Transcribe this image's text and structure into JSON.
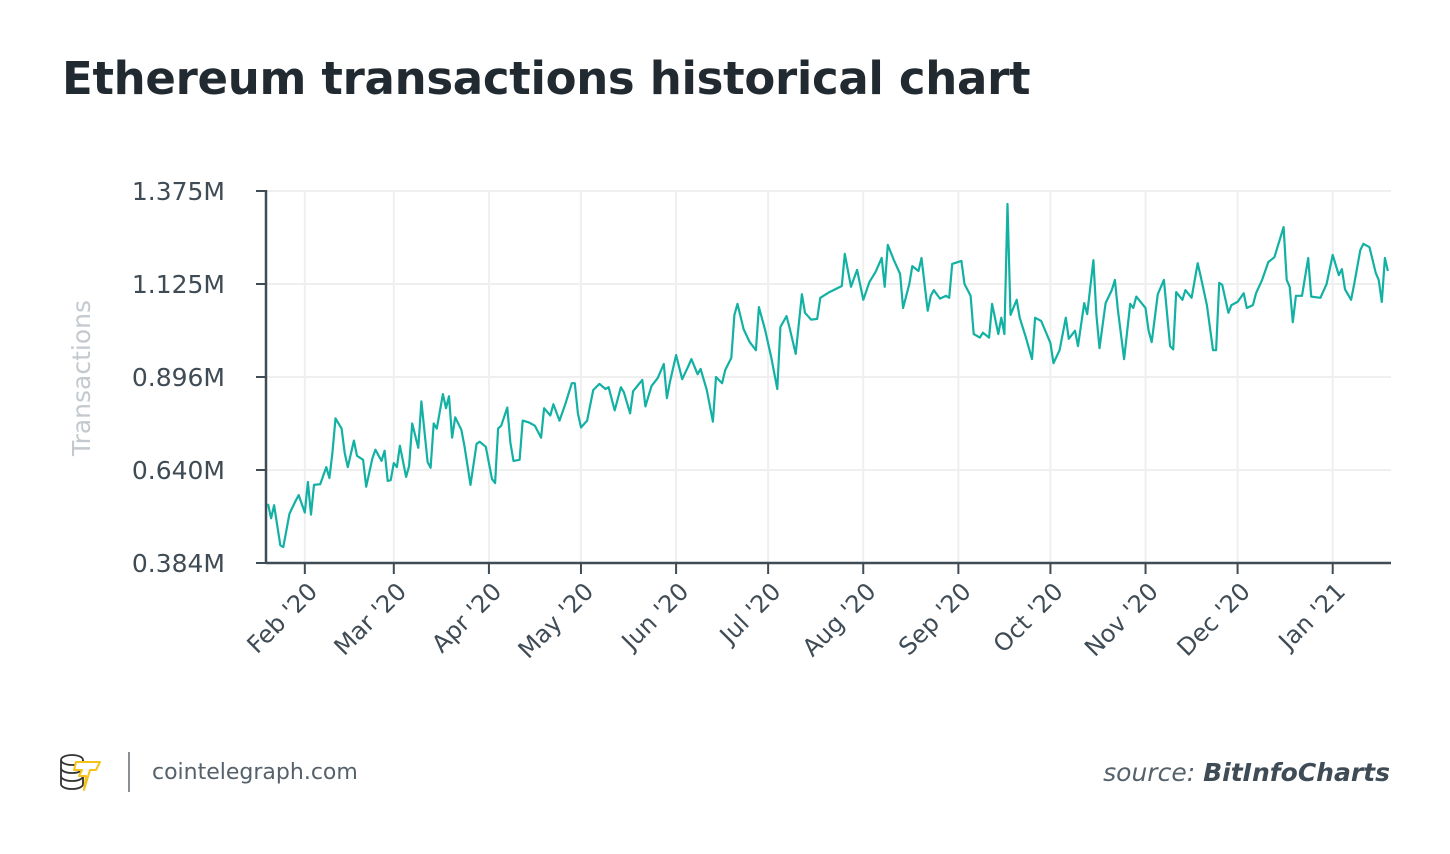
{
  "title": "Ethereum transactions historical chart",
  "footer": {
    "site": "cointelegraph.com",
    "source_prefix": "source:",
    "source_name": "BitInfoCharts",
    "logo": "cointelegraph-logo"
  },
  "colors": {
    "line": "#12b1a3",
    "axis": "#3f4b55",
    "grid": "#efefef",
    "logo_accent": "#f5c21b"
  },
  "chart_data": {
    "type": "line",
    "title": "Ethereum transactions historical chart",
    "ylabel": "Transactions",
    "xlabel": "",
    "yticks": [
      "0.384M",
      "0.640M",
      "0.896M",
      "1.125M",
      "1.375M"
    ],
    "ytick_values": [
      0.384,
      0.64,
      0.896,
      1.125,
      1.375
    ],
    "ylim": [
      0.384,
      1.375
    ],
    "xlim": [
      "2020-01-20",
      "2021-01-20"
    ],
    "xticks": [
      {
        "label": "Feb '20",
        "date": "2020-02-01"
      },
      {
        "label": "Mar '20",
        "date": "2020-03-01"
      },
      {
        "label": "Apr '20",
        "date": "2020-04-01"
      },
      {
        "label": "May '20",
        "date": "2020-05-01"
      },
      {
        "label": "Jun '20",
        "date": "2020-06-01"
      },
      {
        "label": "Jul '20",
        "date": "2020-07-01"
      },
      {
        "label": "Aug '20",
        "date": "2020-08-01"
      },
      {
        "label": "Sep '20",
        "date": "2020-09-01"
      },
      {
        "label": "Oct '20",
        "date": "2020-10-01"
      },
      {
        "label": "Nov '20",
        "date": "2020-11-01"
      },
      {
        "label": "Dec '20",
        "date": "2020-12-01"
      },
      {
        "label": "Jan '21",
        "date": "2021-01-01"
      }
    ],
    "grid": true,
    "unit": "millions",
    "points": [
      [
        "2020-01-20",
        0.547
      ],
      [
        "2020-01-21",
        0.507
      ],
      [
        "2020-01-22",
        0.543
      ],
      [
        "2020-01-24",
        0.433
      ],
      [
        "2020-01-25",
        0.428
      ],
      [
        "2020-01-27",
        0.52
      ],
      [
        "2020-01-29",
        0.555
      ],
      [
        "2020-01-30",
        0.571
      ],
      [
        "2020-02-01",
        0.523
      ],
      [
        "2020-02-02",
        0.607
      ],
      [
        "2020-02-03",
        0.517
      ],
      [
        "2020-02-04",
        0.599
      ],
      [
        "2020-02-06",
        0.601
      ],
      [
        "2020-02-08",
        0.648
      ],
      [
        "2020-02-09",
        0.618
      ],
      [
        "2020-02-10",
        0.687
      ],
      [
        "2020-02-11",
        0.782
      ],
      [
        "2020-02-13",
        0.754
      ],
      [
        "2020-02-14",
        0.687
      ],
      [
        "2020-02-15",
        0.648
      ],
      [
        "2020-02-17",
        0.721
      ],
      [
        "2020-02-18",
        0.679
      ],
      [
        "2020-02-20",
        0.668
      ],
      [
        "2020-02-21",
        0.594
      ],
      [
        "2020-02-23",
        0.671
      ],
      [
        "2020-02-24",
        0.696
      ],
      [
        "2020-02-26",
        0.665
      ],
      [
        "2020-02-27",
        0.693
      ],
      [
        "2020-02-28",
        0.61
      ],
      [
        "2020-02-29",
        0.612
      ],
      [
        "2020-03-01",
        0.659
      ],
      [
        "2020-03-02",
        0.648
      ],
      [
        "2020-03-03",
        0.707
      ],
      [
        "2020-03-05",
        0.621
      ],
      [
        "2020-03-06",
        0.651
      ],
      [
        "2020-03-07",
        0.768
      ],
      [
        "2020-03-09",
        0.701
      ],
      [
        "2020-03-10",
        0.829
      ],
      [
        "2020-03-12",
        0.662
      ],
      [
        "2020-03-13",
        0.646
      ],
      [
        "2020-03-14",
        0.768
      ],
      [
        "2020-03-15",
        0.754
      ],
      [
        "2020-03-17",
        0.849
      ],
      [
        "2020-03-18",
        0.81
      ],
      [
        "2020-03-19",
        0.843
      ],
      [
        "2020-03-20",
        0.729
      ],
      [
        "2020-03-21",
        0.785
      ],
      [
        "2020-03-23",
        0.751
      ],
      [
        "2020-03-24",
        0.707
      ],
      [
        "2020-03-26",
        0.599
      ],
      [
        "2020-03-28",
        0.712
      ],
      [
        "2020-03-29",
        0.718
      ],
      [
        "2020-03-31",
        0.704
      ],
      [
        "2020-04-02",
        0.615
      ],
      [
        "2020-04-03",
        0.604
      ],
      [
        "2020-04-04",
        0.754
      ],
      [
        "2020-04-05",
        0.762
      ],
      [
        "2020-04-07",
        0.812
      ],
      [
        "2020-04-08",
        0.715
      ],
      [
        "2020-04-09",
        0.665
      ],
      [
        "2020-04-11",
        0.668
      ],
      [
        "2020-04-12",
        0.776
      ],
      [
        "2020-04-14",
        0.771
      ],
      [
        "2020-04-16",
        0.762
      ],
      [
        "2020-04-18",
        0.729
      ],
      [
        "2020-04-19",
        0.81
      ],
      [
        "2020-04-21",
        0.79
      ],
      [
        "2020-04-22",
        0.821
      ],
      [
        "2020-04-24",
        0.776
      ],
      [
        "2020-04-26",
        0.824
      ],
      [
        "2020-04-28",
        0.879
      ],
      [
        "2020-04-29",
        0.879
      ],
      [
        "2020-04-30",
        0.796
      ],
      [
        "2020-05-01",
        0.757
      ],
      [
        "2020-05-03",
        0.776
      ],
      [
        "2020-05-05",
        0.86
      ],
      [
        "2020-05-07",
        0.877
      ],
      [
        "2020-05-09",
        0.863
      ],
      [
        "2020-05-10",
        0.868
      ],
      [
        "2020-05-12",
        0.804
      ],
      [
        "2020-05-14",
        0.868
      ],
      [
        "2020-05-15",
        0.854
      ],
      [
        "2020-05-17",
        0.796
      ],
      [
        "2020-05-18",
        0.857
      ],
      [
        "2020-05-21",
        0.888
      ],
      [
        "2020-05-22",
        0.815
      ],
      [
        "2020-05-24",
        0.871
      ],
      [
        "2020-05-26",
        0.893
      ],
      [
        "2020-05-28",
        0.928
      ],
      [
        "2020-05-29",
        0.838
      ],
      [
        "2020-05-30",
        0.882
      ],
      [
        "2020-06-01",
        0.95
      ],
      [
        "2020-06-03",
        0.89
      ],
      [
        "2020-06-05",
        0.923
      ],
      [
        "2020-06-06",
        0.94
      ],
      [
        "2020-06-08",
        0.903
      ],
      [
        "2020-06-09",
        0.916
      ],
      [
        "2020-06-11",
        0.86
      ],
      [
        "2020-06-13",
        0.773
      ],
      [
        "2020-06-14",
        0.896
      ],
      [
        "2020-06-16",
        0.879
      ],
      [
        "2020-06-17",
        0.913
      ],
      [
        "2020-06-19",
        0.943
      ],
      [
        "2020-06-20",
        1.049
      ],
      [
        "2020-06-21",
        1.076
      ],
      [
        "2020-06-23",
        1.014
      ],
      [
        "2020-06-25",
        0.982
      ],
      [
        "2020-06-27",
        0.962
      ],
      [
        "2020-06-28",
        1.068
      ],
      [
        "2020-06-30",
        1.012
      ],
      [
        "2020-07-02",
        0.945
      ],
      [
        "2020-07-04",
        0.863
      ],
      [
        "2020-07-05",
        1.019
      ],
      [
        "2020-07-07",
        1.046
      ],
      [
        "2020-07-08",
        1.017
      ],
      [
        "2020-07-10",
        0.953
      ],
      [
        "2020-07-12",
        1.1
      ],
      [
        "2020-07-13",
        1.054
      ],
      [
        "2020-07-15",
        1.037
      ],
      [
        "2020-07-17",
        1.039
      ],
      [
        "2020-07-18",
        1.091
      ],
      [
        "2020-07-21",
        1.105
      ],
      [
        "2020-07-25",
        1.12
      ],
      [
        "2020-07-26",
        1.206
      ],
      [
        "2020-07-28",
        1.118
      ],
      [
        "2020-07-30",
        1.163
      ],
      [
        "2020-08-01",
        1.086
      ],
      [
        "2020-08-03",
        1.13
      ],
      [
        "2020-08-05",
        1.157
      ],
      [
        "2020-08-07",
        1.195
      ],
      [
        "2020-08-08",
        1.118
      ],
      [
        "2020-08-09",
        1.23
      ],
      [
        "2020-08-11",
        1.189
      ],
      [
        "2020-08-13",
        1.152
      ],
      [
        "2020-08-14",
        1.066
      ],
      [
        "2020-08-16",
        1.125
      ],
      [
        "2020-08-17",
        1.173
      ],
      [
        "2020-08-19",
        1.16
      ],
      [
        "2020-08-20",
        1.195
      ],
      [
        "2020-08-22",
        1.059
      ],
      [
        "2020-08-23",
        1.096
      ],
      [
        "2020-08-24",
        1.11
      ],
      [
        "2020-08-26",
        1.089
      ],
      [
        "2020-08-28",
        1.096
      ],
      [
        "2020-08-29",
        1.091
      ],
      [
        "2020-08-30",
        1.179
      ],
      [
        "2020-09-02",
        1.187
      ],
      [
        "2020-09-03",
        1.125
      ],
      [
        "2020-09-05",
        1.096
      ],
      [
        "2020-09-06",
        1.002
      ],
      [
        "2020-09-08",
        0.993
      ],
      [
        "2020-09-09",
        1.005
      ],
      [
        "2020-09-11",
        0.993
      ],
      [
        "2020-09-12",
        1.076
      ],
      [
        "2020-09-14",
        1.002
      ],
      [
        "2020-09-15",
        1.042
      ],
      [
        "2020-09-16",
        1.002
      ],
      [
        "2020-09-17",
        1.34
      ],
      [
        "2020-09-18",
        1.049
      ],
      [
        "2020-09-20",
        1.086
      ],
      [
        "2020-09-21",
        1.042
      ],
      [
        "2020-09-23",
        0.993
      ],
      [
        "2020-09-25",
        0.94
      ],
      [
        "2020-09-26",
        1.042
      ],
      [
        "2020-09-28",
        1.034
      ],
      [
        "2020-10-01",
        0.98
      ],
      [
        "2020-10-02",
        0.93
      ],
      [
        "2020-10-04",
        0.962
      ],
      [
        "2020-10-06",
        1.042
      ],
      [
        "2020-10-07",
        0.99
      ],
      [
        "2020-10-09",
        1.01
      ],
      [
        "2020-10-10",
        0.972
      ],
      [
        "2020-10-12",
        1.078
      ],
      [
        "2020-10-13",
        1.051
      ],
      [
        "2020-10-15",
        1.189
      ],
      [
        "2020-10-16",
        1.049
      ],
      [
        "2020-10-17",
        0.967
      ],
      [
        "2020-10-19",
        1.078
      ],
      [
        "2020-10-21",
        1.11
      ],
      [
        "2020-10-22",
        1.136
      ],
      [
        "2020-10-23",
        1.061
      ],
      [
        "2020-10-25",
        0.94
      ],
      [
        "2020-10-27",
        1.076
      ],
      [
        "2020-10-28",
        1.066
      ],
      [
        "2020-10-29",
        1.094
      ],
      [
        "2020-11-01",
        1.066
      ],
      [
        "2020-11-02",
        1.01
      ],
      [
        "2020-11-03",
        0.982
      ],
      [
        "2020-11-05",
        1.1
      ],
      [
        "2020-11-07",
        1.136
      ],
      [
        "2020-11-09",
        0.972
      ],
      [
        "2020-11-10",
        0.964
      ],
      [
        "2020-11-11",
        1.105
      ],
      [
        "2020-11-13",
        1.086
      ],
      [
        "2020-11-14",
        1.11
      ],
      [
        "2020-11-16",
        1.091
      ],
      [
        "2020-11-18",
        1.181
      ],
      [
        "2020-11-19",
        1.144
      ],
      [
        "2020-11-21",
        1.073
      ],
      [
        "2020-11-23",
        0.962
      ],
      [
        "2020-11-24",
        0.962
      ],
      [
        "2020-11-25",
        1.128
      ],
      [
        "2020-11-26",
        1.123
      ],
      [
        "2020-11-28",
        1.054
      ],
      [
        "2020-11-29",
        1.073
      ],
      [
        "2020-12-01",
        1.081
      ],
      [
        "2020-12-03",
        1.102
      ],
      [
        "2020-12-04",
        1.066
      ],
      [
        "2020-12-06",
        1.073
      ],
      [
        "2020-12-07",
        1.102
      ],
      [
        "2020-12-09",
        1.136
      ],
      [
        "2020-12-11",
        1.184
      ],
      [
        "2020-12-13",
        1.197
      ],
      [
        "2020-12-16",
        1.278
      ],
      [
        "2020-12-17",
        1.136
      ],
      [
        "2020-12-18",
        1.118
      ],
      [
        "2020-12-19",
        1.031
      ],
      [
        "2020-12-20",
        1.096
      ],
      [
        "2020-12-22",
        1.096
      ],
      [
        "2020-12-24",
        1.195
      ],
      [
        "2020-12-25",
        1.094
      ],
      [
        "2020-12-28",
        1.091
      ],
      [
        "2020-12-30",
        1.125
      ],
      [
        "2021-01-01",
        1.203
      ],
      [
        "2021-01-03",
        1.149
      ],
      [
        "2021-01-04",
        1.165
      ],
      [
        "2021-01-05",
        1.112
      ],
      [
        "2021-01-07",
        1.086
      ],
      [
        "2021-01-08",
        1.125
      ],
      [
        "2021-01-10",
        1.216
      ],
      [
        "2021-01-11",
        1.233
      ],
      [
        "2021-01-13",
        1.224
      ],
      [
        "2021-01-15",
        1.155
      ],
      [
        "2021-01-16",
        1.136
      ],
      [
        "2021-01-17",
        1.081
      ],
      [
        "2021-01-18",
        1.195
      ],
      [
        "2021-01-19",
        1.16
      ]
    ]
  }
}
